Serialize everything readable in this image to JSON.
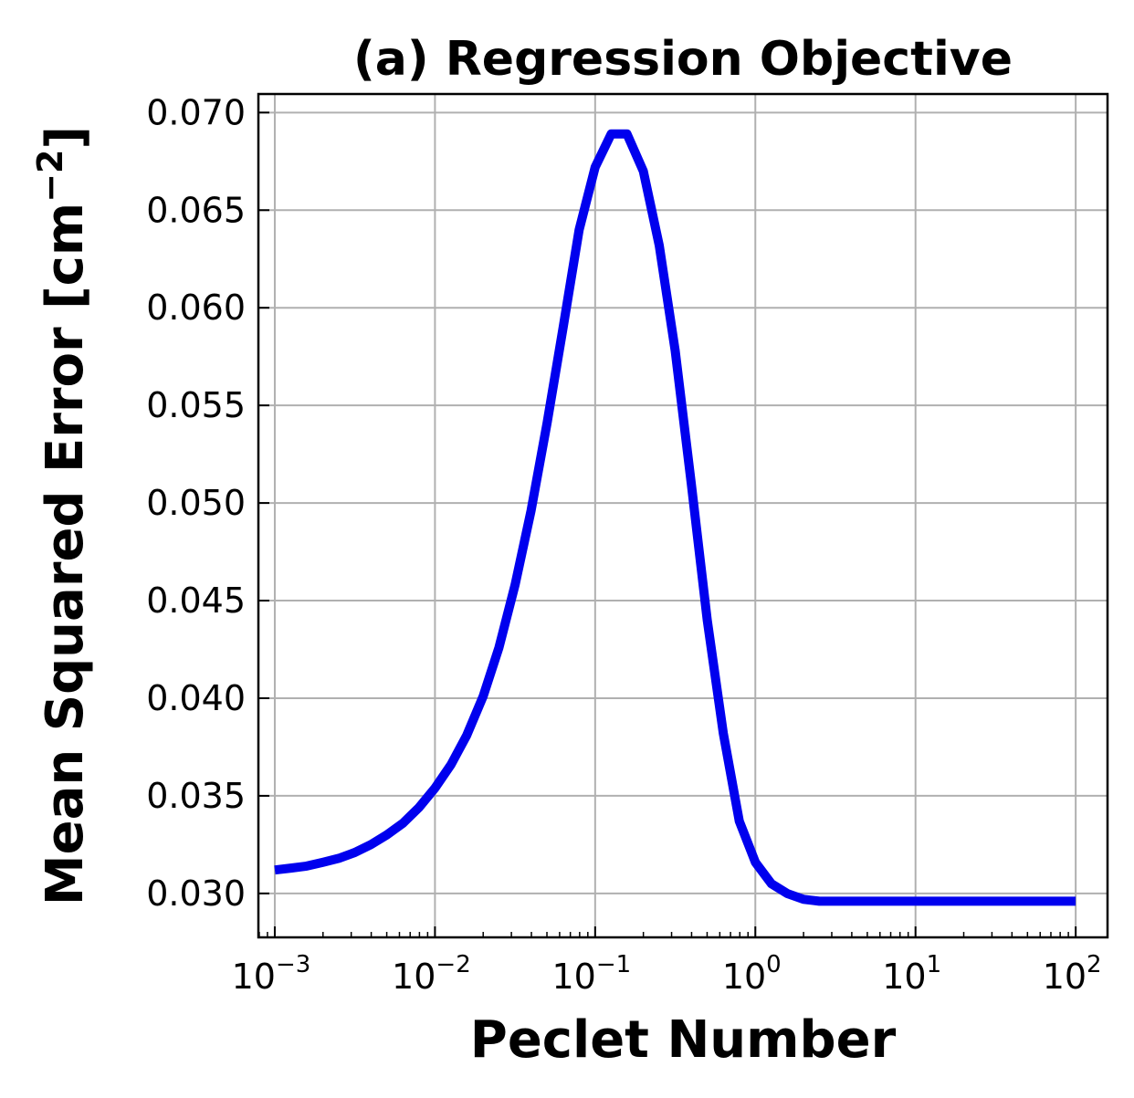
{
  "chart_data": {
    "type": "line",
    "title": "(a) Regression Objective",
    "xlabel": "Peclet Number",
    "ylabel": "Mean Squared Error [cm",
    "ylabel_sup": "−2",
    "ylabel_close": "]",
    "xscale": "log",
    "xlim": [
      0.00079,
      158
    ],
    "ylim": [
      0.02775,
      0.07095
    ],
    "grid": true,
    "xticks": [
      {
        "value": 0.001,
        "base": "10",
        "exp": "−3"
      },
      {
        "value": 0.01,
        "base": "10",
        "exp": "−2"
      },
      {
        "value": 0.1,
        "base": "10",
        "exp": "−1"
      },
      {
        "value": 1,
        "base": "10",
        "exp": "0"
      },
      {
        "value": 10,
        "base": "10",
        "exp": "1"
      },
      {
        "value": 100,
        "base": "10",
        "exp": "2"
      }
    ],
    "yticks": [
      {
        "value": 0.03,
        "label": "0.030"
      },
      {
        "value": 0.035,
        "label": "0.035"
      },
      {
        "value": 0.04,
        "label": "0.040"
      },
      {
        "value": 0.045,
        "label": "0.045"
      },
      {
        "value": 0.05,
        "label": "0.050"
      },
      {
        "value": 0.055,
        "label": "0.055"
      },
      {
        "value": 0.06,
        "label": "0.060"
      },
      {
        "value": 0.065,
        "label": "0.065"
      },
      {
        "value": 0.07,
        "label": "0.070"
      }
    ],
    "series": [
      {
        "color": "#0000ee",
        "x": [
          0.001,
          0.00126,
          0.00158,
          0.002,
          0.00251,
          0.00316,
          0.00398,
          0.00501,
          0.00631,
          0.00794,
          0.01,
          0.0126,
          0.0158,
          0.02,
          0.0251,
          0.0316,
          0.0398,
          0.0501,
          0.0631,
          0.0794,
          0.1,
          0.126,
          0.158,
          0.2,
          0.251,
          0.316,
          0.398,
          0.501,
          0.631,
          0.794,
          1.0,
          1.26,
          1.58,
          2.0,
          2.51,
          3.16,
          3.98,
          5.01,
          6.31,
          7.94,
          10,
          20,
          50,
          100
        ],
        "y": [
          0.0312,
          0.0313,
          0.0314,
          0.0316,
          0.0318,
          0.0321,
          0.0325,
          0.033,
          0.0336,
          0.0344,
          0.0354,
          0.0366,
          0.0381,
          0.0401,
          0.0426,
          0.0458,
          0.0496,
          0.0541,
          0.059,
          0.064,
          0.0672,
          0.0689,
          0.0689,
          0.067,
          0.0632,
          0.0578,
          0.051,
          0.044,
          0.0382,
          0.0337,
          0.0316,
          0.0305,
          0.03,
          0.0297,
          0.0296,
          0.0296,
          0.0296,
          0.0296,
          0.0296,
          0.0296,
          0.0296,
          0.0296,
          0.0296,
          0.0296
        ]
      }
    ]
  }
}
